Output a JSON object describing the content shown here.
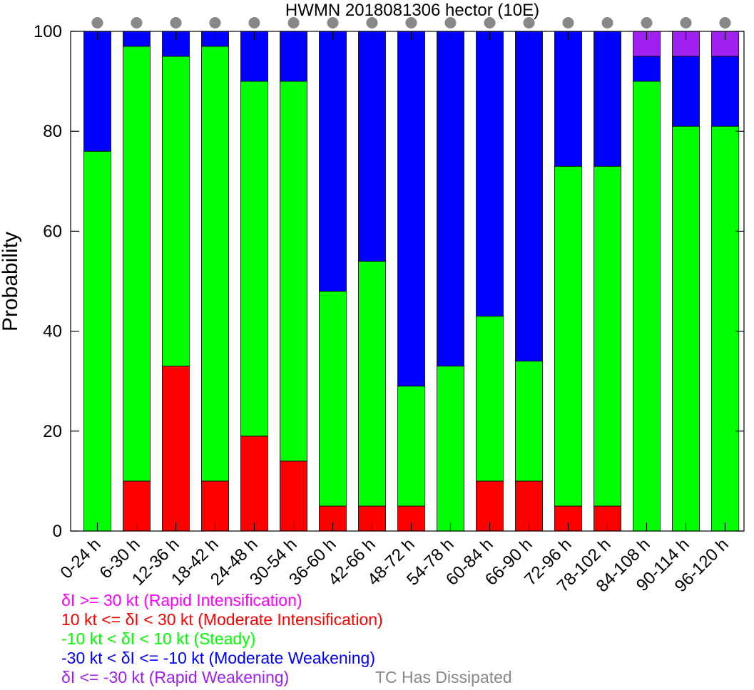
{
  "chart_data": {
    "type": "bar",
    "stacked": true,
    "title": "HWMN 2018081306 hector (10E)",
    "xlabel": "",
    "ylabel": "Probability",
    "ylim": [
      0,
      100
    ],
    "yticks": [
      0,
      20,
      40,
      60,
      80,
      100
    ],
    "grid": false,
    "categories": [
      "0-24 h",
      "6-30 h",
      "12-36 h",
      "18-42 h",
      "24-48 h",
      "30-54 h",
      "36-60 h",
      "42-66 h",
      "48-72 h",
      "54-78 h",
      "60-84 h",
      "66-90 h",
      "72-96 h",
      "78-102 h",
      "84-108 h",
      "90-114 h",
      "96-120 h"
    ],
    "series": [
      {
        "name": "δI >= 30 kt (Rapid Intensification)",
        "color": "#ff00ff",
        "values": [
          0,
          0,
          0,
          0,
          0,
          0,
          0,
          0,
          0,
          0,
          0,
          0,
          0,
          0,
          0,
          0,
          0
        ]
      },
      {
        "name": "10 kt <= δI < 30 kt (Moderate Intensification)",
        "color": "#ff0000",
        "values": [
          0,
          10,
          33,
          10,
          19,
          14,
          5,
          5,
          5,
          0,
          10,
          10,
          5,
          5,
          0,
          0,
          0
        ]
      },
      {
        "name": "-10 kt < δI < 10 kt (Steady)",
        "color": "#00ff00",
        "values": [
          76,
          87,
          62,
          87,
          71,
          76,
          43,
          49,
          24,
          33,
          33,
          24,
          68,
          68,
          90,
          81,
          81
        ]
      },
      {
        "name": "-30 kt < δI <= -10 kt (Moderate Weakening)",
        "color": "#0000ff",
        "values": [
          24,
          3,
          5,
          3,
          10,
          10,
          52,
          46,
          71,
          67,
          57,
          66,
          27,
          27,
          5,
          14,
          14
        ]
      },
      {
        "name": "δI <= -30 kt (Rapid Weakening)",
        "color": "#a020f0",
        "values": [
          0,
          0,
          0,
          0,
          0,
          0,
          0,
          0,
          0,
          0,
          0,
          0,
          0,
          0,
          5,
          5,
          5
        ]
      }
    ],
    "dissipated": {
      "label": "TC Has Dissipated",
      "color": "#888888",
      "values": [
        0,
        0,
        0,
        0,
        0,
        0,
        0,
        0,
        0,
        0,
        0,
        0,
        0,
        0,
        0,
        0,
        0
      ]
    },
    "legend_position": "bottom-left"
  }
}
